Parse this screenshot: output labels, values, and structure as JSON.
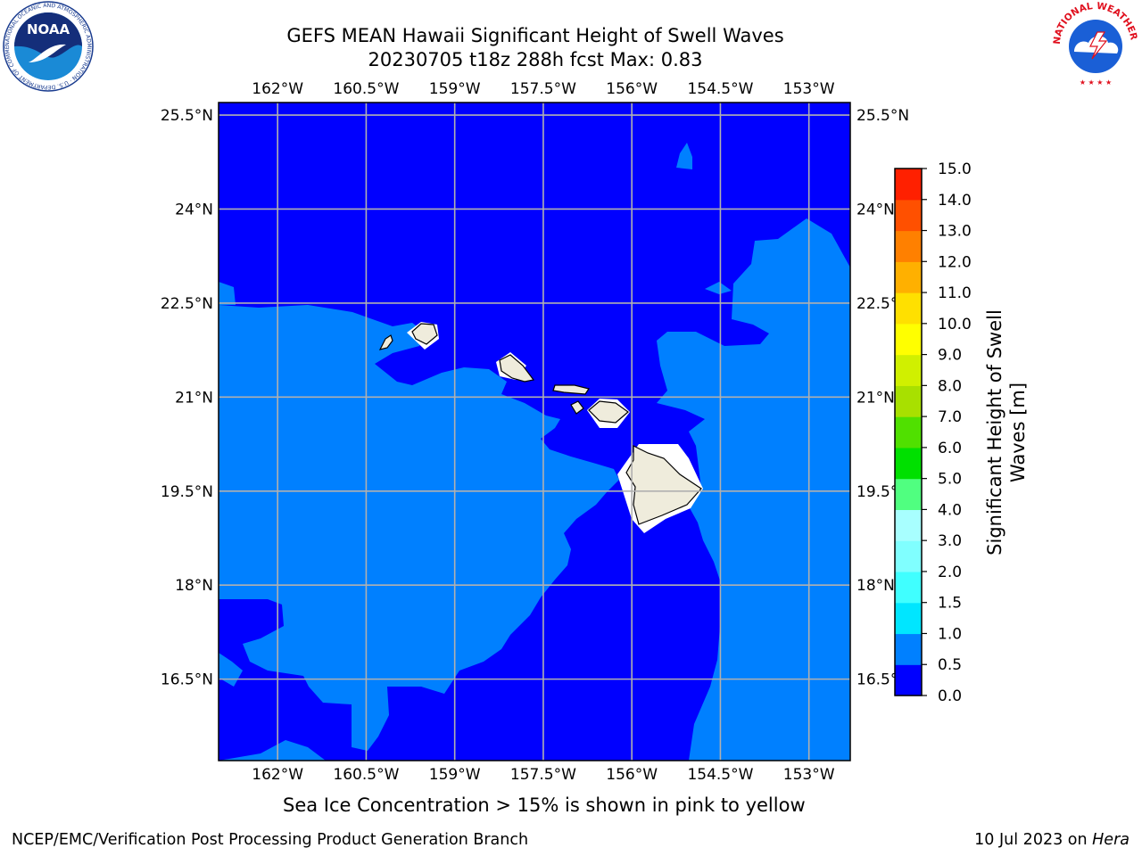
{
  "title": {
    "line1": "GEFS MEAN Hawaii Significant Height of Swell Waves",
    "line2": "20230705 t18z 288h fcst   Max: 0.83"
  },
  "axes": {
    "lon_labels": [
      "162°W",
      "160.5°W",
      "159°W",
      "157.5°W",
      "156°W",
      "154.5°W",
      "153°W"
    ],
    "lat_labels": [
      "25.5°N",
      "24°N",
      "22.5°N",
      "21°N",
      "19.5°N",
      "18°N",
      "16.5°N"
    ],
    "lon_range": [
      -163.0,
      -152.3
    ],
    "lat_range": [
      15.2,
      25.7
    ]
  },
  "colorbar": {
    "label_line1": "Significant Height of Swell",
    "label_line2": "Waves [m]",
    "ticks": [
      "0.0",
      "0.5",
      "1.0",
      "1.5",
      "2.0",
      "3.0",
      "4.0",
      "5.0",
      "6.0",
      "7.0",
      "8.0",
      "9.0",
      "10.0",
      "11.0",
      "12.0",
      "13.0",
      "14.0",
      "15.0"
    ],
    "colors": [
      "#0000ff",
      "#0080ff",
      "#00e6ff",
      "#40ffff",
      "#80ffff",
      "#a8ffff",
      "#50ff80",
      "#00e000",
      "#50e000",
      "#a8e000",
      "#d0f000",
      "#ffff00",
      "#ffe000",
      "#ffb000",
      "#ff8000",
      "#ff5000",
      "#ff2000",
      "#ff0000"
    ]
  },
  "legend_note": "Sea Ice Concentration > 15% is shown in pink to yellow",
  "footer": {
    "left": "NCEP/EMC/Verification Post Processing Product Generation Branch",
    "right_date": "10 Jul 2023 on ",
    "right_host": "Hera"
  },
  "logos": {
    "noaa": "NOAA",
    "nws": "NATIONAL WEATHER SERVICE",
    "noaa_ring": "NATIONAL OCEANIC AND ATMOSPHERIC ADMINISTRATION · U.S. DEPARTMENT OF COMMERCE"
  },
  "colors": {
    "deep": "#0000ff",
    "mid": "#0080ff",
    "land": "#efecdc",
    "grid": "#b0b0b0"
  }
}
